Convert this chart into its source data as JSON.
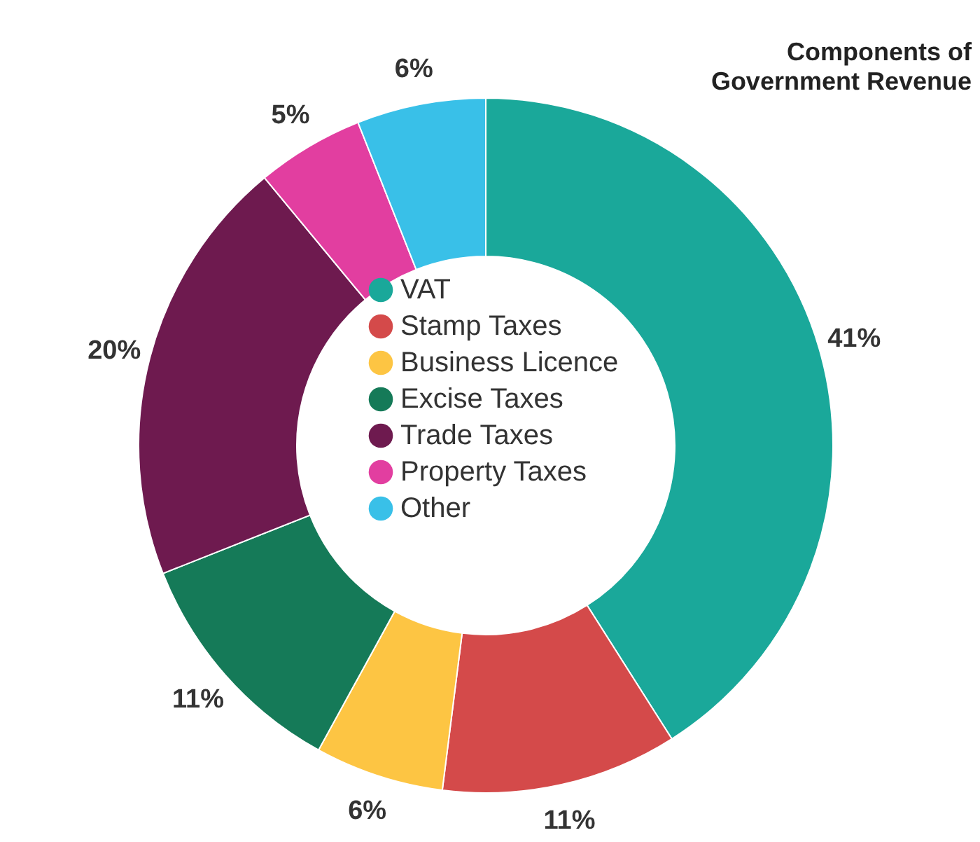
{
  "chart_data": {
    "type": "donut",
    "title": [
      "Components of",
      "Government Revenue"
    ],
    "categories": [
      "VAT",
      "Stamp Taxes",
      "Business Licence",
      "Excise Taxes",
      "Trade Taxes",
      "Property Taxes",
      "Other"
    ],
    "values": [
      41,
      11,
      6,
      11,
      20,
      5,
      6
    ],
    "colors": [
      "#1aa89a",
      "#d44a4a",
      "#fdc543",
      "#157a58",
      "#6e1a4f",
      "#e23ea0",
      "#39c0e8"
    ],
    "value_labels": [
      "41%",
      "11%",
      "6%",
      "11%",
      "20%",
      "5%",
      "6%"
    ],
    "legend": "center"
  }
}
